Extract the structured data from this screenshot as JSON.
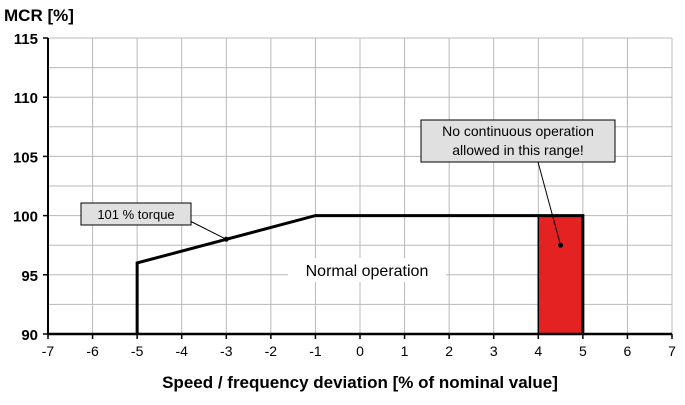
{
  "chart_data": {
    "type": "line",
    "ylabel": "MCR [%]",
    "xlabel": "Speed / frequency deviation  [% of nominal  value]",
    "xlim": [
      -7,
      7
    ],
    "ylim": [
      90,
      115
    ],
    "x_ticks": [
      -7,
      -6,
      -5,
      -4,
      -3,
      -2,
      -1,
      0,
      1,
      2,
      3,
      4,
      5,
      6,
      7
    ],
    "y_ticks": [
      90,
      95,
      100,
      105,
      110,
      115
    ],
    "grid": true,
    "series": [
      {
        "values": [
          {
            "x": -5,
            "y": 90
          },
          {
            "x": -5,
            "y": 96
          },
          {
            "x": -1,
            "y": 100
          },
          {
            "x": 5,
            "y": 100
          },
          {
            "x": 5,
            "y": 90
          }
        ]
      }
    ],
    "region": {
      "x": [
        4,
        5
      ],
      "y": [
        90,
        100
      ],
      "color": "#e52222"
    },
    "annotations": [
      {
        "text": "101 % torque",
        "target": {
          "x": -3,
          "y": 98
        }
      },
      {
        "lines": [
          "No continuous operation",
          "allowed in this range!"
        ],
        "target": {
          "x": 4.5,
          "y": 97.5
        }
      },
      {
        "text": "Normal operation"
      }
    ]
  }
}
